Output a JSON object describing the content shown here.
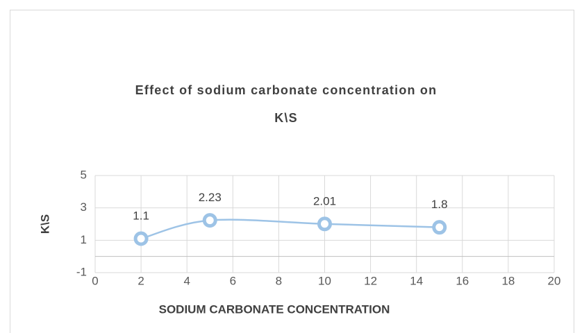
{
  "chart_data": {
    "type": "line",
    "title": "Effect of sodium carbonate concentration on\nK\\S",
    "x_label": "SODIUM CARBONATE CONCENTRATION",
    "y_label": "K\\S",
    "x": [
      2,
      5,
      10,
      15
    ],
    "series": [
      {
        "name": "K\\S",
        "color": "#9dc3e6",
        "values": [
          1.1,
          2.23,
          2.01,
          1.8
        ]
      }
    ],
    "xlim": [
      0,
      20
    ],
    "xticks": [
      0,
      2,
      4,
      6,
      8,
      10,
      12,
      14,
      16,
      18,
      20
    ],
    "ylim": [
      -1,
      5
    ],
    "yticks": [
      -1,
      1,
      3,
      5
    ],
    "grid": true,
    "smooth": true
  }
}
